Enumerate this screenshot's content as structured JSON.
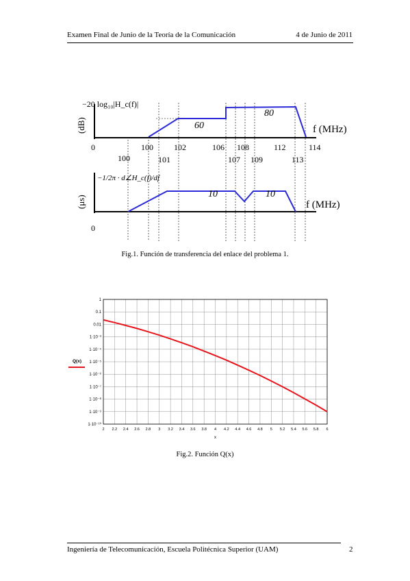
{
  "header": {
    "left": "Examen Final de Junio de la Teoría de la Comunicación",
    "right": "4 de Junio de 2011"
  },
  "footer": {
    "left": "Ingeniería de Telecomunicación, Escuela Politécnica Superior (UAM)",
    "page_number": "2"
  },
  "figure1": {
    "caption": "Fig.1. Función de transferencia del enlace del problema 1.",
    "top_panel": {
      "ylabel_unit": "(dB)",
      "ylabel_expr": "−20 log₁₀|H_c(f)|",
      "xlabel": "f (MHz)",
      "origin_label": "0",
      "level_labels": [
        "60",
        "80"
      ],
      "freq_labels": [
        "100",
        "102",
        "106",
        "108",
        "112",
        "114"
      ],
      "freq_labels_lower": [
        "101",
        "107",
        "109",
        "113"
      ]
    },
    "bottom_panel": {
      "ylabel_unit": "(μs)",
      "ylabel_expr": "−1/2π · d∠H_c(f)/df",
      "xlabel": "f (MHz)",
      "origin_label": "0",
      "freq_label": "100",
      "level_labels": [
        "10",
        "10"
      ]
    }
  },
  "figure2": {
    "caption": "Fig.2. Función Q(x)",
    "legend": "Q(x)",
    "xlabel": "x",
    "line_color": "#e8141b",
    "chart_data": {
      "type": "line",
      "title": "",
      "xlabel": "x",
      "ylabel": "Q(x)",
      "yscale": "log",
      "xlim": [
        2,
        6
      ],
      "ylim": [
        1e-10,
        1
      ],
      "grid": true,
      "x_ticks": [
        "2",
        "2.2",
        "2.4",
        "2.6",
        "2.8",
        "3",
        "3.2",
        "3.4",
        "3.6",
        "3.8",
        "4",
        "4.2",
        "4.4",
        "4.6",
        "4.8",
        "5",
        "5.2",
        "5.4",
        "5.6",
        "5.8",
        "6"
      ],
      "y_ticks": [
        "1",
        "0.1",
        "0.01",
        "1·10⁻³",
        "1·10⁻⁴",
        "1·10⁻⁵",
        "1·10⁻⁶",
        "1·10⁻⁷",
        "1·10⁻⁸",
        "1·10⁻⁹",
        "1·10⁻¹⁰"
      ],
      "series": [
        {
          "name": "Q(x)",
          "x": [
            2.0,
            2.2,
            2.4,
            2.6,
            2.8,
            3.0,
            3.2,
            3.4,
            3.6,
            3.8,
            4.0,
            4.2,
            4.4,
            4.6,
            4.8,
            5.0,
            5.2,
            5.4,
            5.6,
            5.8,
            6.0
          ],
          "y": [
            0.02275,
            0.0139,
            0.0082,
            0.00466,
            0.00256,
            0.00135,
            0.000687,
            0.000337,
            0.000159,
            7.23e-05,
            3.17e-05,
            1.33e-05,
            5.41e-06,
            2.11e-06,
            7.93e-07,
            2.87e-07,
            9.96e-08,
            3.33e-08,
            1.07e-08,
            3.32e-09,
            9.87e-10
          ]
        }
      ]
    }
  }
}
